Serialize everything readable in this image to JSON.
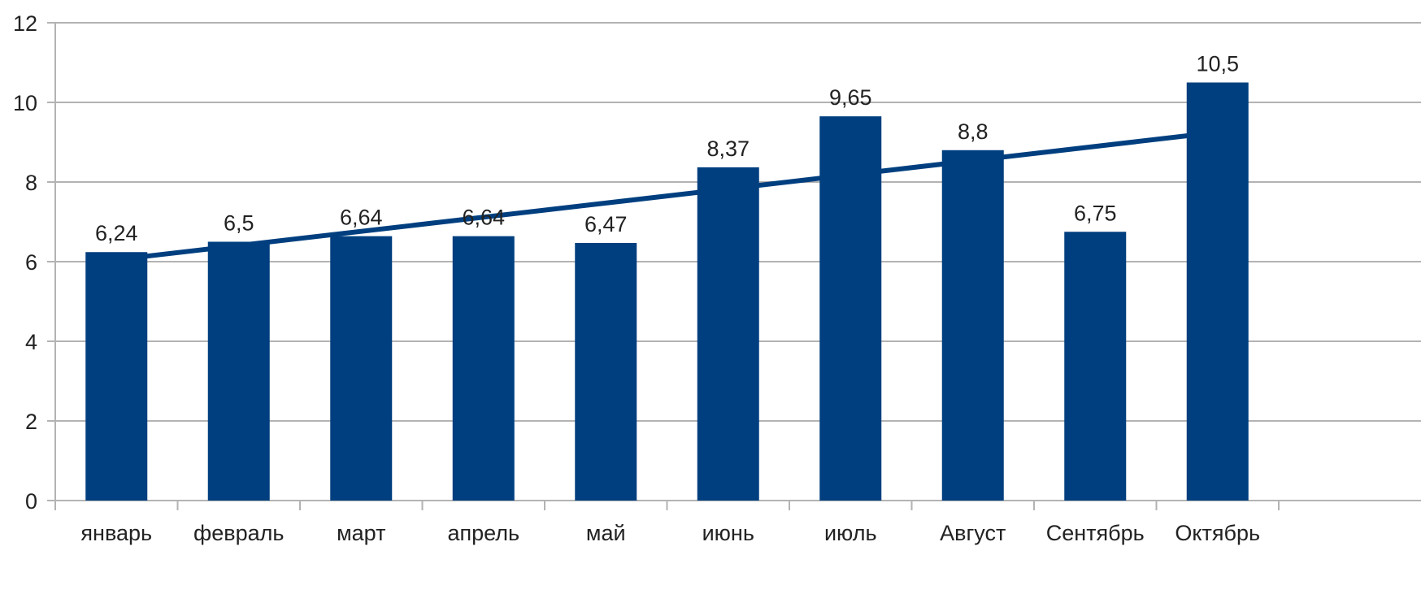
{
  "chart_data": {
    "type": "bar",
    "categories": [
      "январь",
      "февраль",
      "март",
      "апрель",
      "май",
      "июнь",
      "июль",
      "Август",
      "Сентябрь",
      "Октябрь"
    ],
    "values": [
      6.24,
      6.5,
      6.64,
      6.64,
      6.47,
      8.37,
      9.65,
      8.8,
      6.75,
      10.5
    ],
    "value_labels": [
      "6,24",
      "6,5",
      "6,64",
      "6,64",
      "6,47",
      "8,37",
      "9,65",
      "8,8",
      "6,75",
      "10,5"
    ],
    "y_ticks": [
      "0",
      "2",
      "4",
      "6",
      "8",
      "10",
      "12"
    ],
    "ylim": [
      0,
      12
    ],
    "grid": true,
    "trendline": {
      "type": "linear",
      "start_value": 6.05,
      "end_value": 9.25
    },
    "title": "",
    "xlabel": "",
    "ylabel": ""
  },
  "colors": {
    "bar": "#003f7f",
    "trendline": "#003f7f",
    "grid": "#b3b3b3",
    "axis_text": "#222222"
  }
}
